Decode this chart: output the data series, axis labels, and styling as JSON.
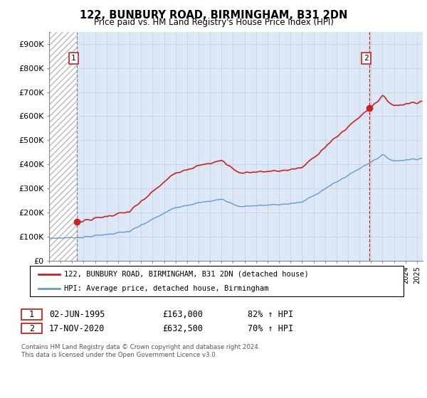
{
  "title1": "122, BUNBURY ROAD, BIRMINGHAM, B31 2DN",
  "title2": "Price paid vs. HM Land Registry's House Price Index (HPI)",
  "ylim": [
    0,
    950000
  ],
  "yticks": [
    0,
    100000,
    200000,
    300000,
    400000,
    500000,
    600000,
    700000,
    800000,
    900000
  ],
  "ytick_labels": [
    "£0",
    "£100K",
    "£200K",
    "£300K",
    "£400K",
    "£500K",
    "£600K",
    "£700K",
    "£800K",
    "£900K"
  ],
  "xlim_start": 1993.0,
  "xlim_end": 2025.5,
  "hatch_end": 1995.42,
  "sale1_x": 1995.42,
  "sale1_y": 163000,
  "sale2_x": 2020.88,
  "sale2_y": 632500,
  "legend_line1": "122, BUNBURY ROAD, BIRMINGHAM, B31 2DN (detached house)",
  "legend_line2": "HPI: Average price, detached house, Birmingham",
  "annotation1_label": "1",
  "annotation1_date": "02-JUN-1995",
  "annotation1_price": "£163,000",
  "annotation1_hpi": "82% ↑ HPI",
  "annotation2_label": "2",
  "annotation2_date": "17-NOV-2020",
  "annotation2_price": "£632,500",
  "annotation2_hpi": "70% ↑ HPI",
  "footer": "Contains HM Land Registry data © Crown copyright and database right 2024.\nThis data is licensed under the Open Government Licence v3.0.",
  "hpi_color": "#6699cc",
  "price_color": "#cc2222",
  "hatch_color": "#bbbbbb",
  "bg_color": "#dce8f5",
  "grid_color": "#c0cfe0"
}
